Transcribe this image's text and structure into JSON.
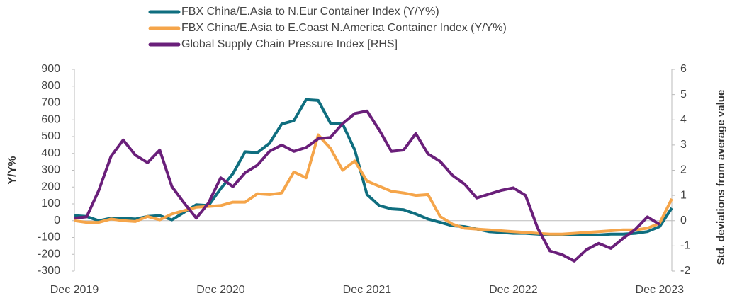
{
  "chart_data": {
    "type": "line",
    "categories": [
      "Dec 2019",
      null,
      null,
      null,
      null,
      null,
      null,
      null,
      null,
      null,
      null,
      null,
      "Dec 2020",
      null,
      null,
      null,
      null,
      null,
      null,
      null,
      null,
      null,
      null,
      null,
      "Dec 2021",
      null,
      null,
      null,
      null,
      null,
      null,
      null,
      null,
      null,
      null,
      null,
      "Dec 2022",
      null,
      null,
      null,
      null,
      null,
      null,
      null,
      null,
      null,
      null,
      null,
      "Dec 2023",
      null
    ],
    "ylabel": "Y/Y%",
    "y2label": "Std. deviations from average value",
    "ylim": [
      -300,
      900
    ],
    "yticks": [
      -300,
      -200,
      -100,
      0,
      100,
      200,
      300,
      400,
      500,
      600,
      700,
      800,
      900
    ],
    "y2lim": [
      -2,
      6
    ],
    "y2ticks": [
      -2,
      -1,
      0,
      1,
      2,
      3,
      4,
      5,
      6
    ],
    "legend": "top",
    "series": [
      {
        "name": "FBX China/E.Asia to N.Eur Container Index (Y/Y%)",
        "color": "#0f6e7f",
        "values": [
          30,
          25,
          0,
          15,
          15,
          10,
          25,
          30,
          5,
          50,
          95,
          90,
          190,
          280,
          410,
          405,
          460,
          575,
          595,
          720,
          715,
          580,
          575,
          420,
          155,
          90,
          70,
          65,
          40,
          10,
          -10,
          -30,
          -35,
          -50,
          -65,
          -70,
          -75,
          -75,
          -80,
          -85,
          -85,
          -85,
          -85,
          -85,
          -80,
          -80,
          -75,
          -65,
          -35,
          75
        ]
      },
      {
        "name": "FBX China/E.Asia to E.Coast N.America Container Index (Y/Y%)",
        "color": "#f5a54a",
        "values": [
          0,
          -10,
          -10,
          10,
          0,
          -5,
          25,
          5,
          40,
          60,
          80,
          85,
          90,
          110,
          110,
          160,
          155,
          165,
          290,
          255,
          510,
          430,
          300,
          355,
          235,
          205,
          175,
          165,
          150,
          155,
          25,
          -20,
          -45,
          -50,
          -55,
          -60,
          -65,
          -70,
          -75,
          -80,
          -80,
          -75,
          -70,
          -65,
          -60,
          -55,
          -55,
          -45,
          -15,
          130
        ]
      },
      {
        "name": "Global Supply Chain Pressure Index [RHS]",
        "color": "#6a1f7a",
        "axis": "y2",
        "values": [
          0.1,
          0.15,
          1.2,
          2.55,
          3.2,
          2.6,
          2.3,
          2.8,
          1.35,
          0.7,
          0.1,
          0.7,
          1.7,
          1.35,
          1.9,
          2.2,
          2.75,
          3.0,
          2.75,
          2.9,
          3.25,
          3.3,
          3.85,
          4.25,
          4.35,
          3.6,
          2.75,
          2.8,
          3.45,
          2.65,
          2.35,
          1.8,
          1.45,
          0.9,
          1.05,
          1.2,
          1.3,
          1.0,
          -0.3,
          -1.2,
          -1.35,
          -1.6,
          -1.15,
          -0.9,
          -1.1,
          -0.7,
          -0.35,
          0.15,
          -0.15,
          null
        ]
      }
    ]
  }
}
